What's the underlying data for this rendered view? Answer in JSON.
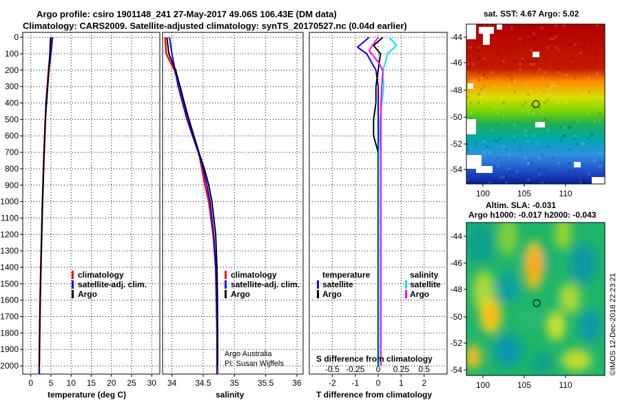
{
  "titles": {
    "line1": "Argo profile: csiro 1901148_241 27-May-2017 49.06S 106.43E (DM data)",
    "line2": "Climatology: CARS2009. Satellite-adjusted climatology: synTS_20170527.nc (0.04d earlier)"
  },
  "map_top": {
    "title": "sat. SST: 4.67 Argo: 5.02",
    "lat_ticks": [
      "-44",
      "-46",
      "-48",
      "-50",
      "-52",
      "-54"
    ],
    "lon_ticks": [
      "100",
      "105",
      "110"
    ]
  },
  "map_bottom": {
    "title1": "Altim. SLA: -0.031",
    "title2": "Argo h1000: -0.017 h2000: -0.043",
    "lat_ticks": [
      "-44",
      "-46",
      "-48",
      "-50",
      "-52",
      "-54"
    ],
    "lon_ticks": [
      "100",
      "105",
      "110"
    ]
  },
  "depth_ticks": [
    "0",
    "100",
    "200",
    "300",
    "400",
    "500",
    "600",
    "700",
    "800",
    "900",
    "1000",
    "1100",
    "1200",
    "1300",
    "1400",
    "1500",
    "1600",
    "1700",
    "1800",
    "1900",
    "2000"
  ],
  "legend1": {
    "climatology": "climatology",
    "satellite": "satellite-adj. clim.",
    "argo": "Argo"
  },
  "legend2": {
    "climatology": "climatology",
    "satellite": "satellite-adj. clim.",
    "argo": "Argo"
  },
  "legend3": {
    "temperature": "temperature",
    "salinity": "salinity",
    "sat_t": "satellite",
    "argo_t": "Argo",
    "sat_s": "satellite",
    "argo_s": "Argo"
  },
  "credit": {
    "line1": "Argo Australia",
    "line2": "PI: Susan Wijffels"
  },
  "stamp": "©IMOS 12-Dec-2018 22:23:21",
  "colors": {
    "climatology": "#ff0000",
    "satellite": "#0000ff",
    "argo": "#000000",
    "sat_s": "#00e5ee",
    "argo_s": "#ff00ff"
  },
  "chart_data": [
    {
      "type": "line",
      "title": "",
      "xlabel": "temperature (deg C)",
      "ylabel": "",
      "xlim": [
        -2,
        32
      ],
      "ylim": [
        2050,
        -30
      ],
      "x_ticks": [
        0,
        5,
        10,
        15,
        20,
        25,
        30
      ],
      "x_tick_labels": [
        "0",
        "5",
        "10",
        "15",
        "20",
        "25",
        "30"
      ],
      "series": [
        {
          "name": "climatology",
          "depth": [
            0,
            100,
            200,
            400,
            700,
            1000,
            1300,
            1600,
            2000,
            2050
          ],
          "values": [
            5.0,
            4.8,
            4.4,
            3.8,
            3.3,
            2.9,
            2.6,
            2.3,
            2.1,
            2.1
          ]
        },
        {
          "name": "satellite-adj. clim.",
          "depth": [
            0,
            100,
            200,
            400,
            700,
            1000,
            1300,
            1600,
            2000,
            2050
          ],
          "values": [
            5.4,
            5.0,
            4.5,
            3.8,
            3.3,
            2.9,
            2.6,
            2.3,
            2.1,
            2.1
          ]
        },
        {
          "name": "Argo",
          "depth": [
            0,
            120,
            300,
            500,
            700,
            1000,
            1400,
            1800,
            2000
          ],
          "values": [
            4.9,
            4.7,
            4.2,
            3.6,
            3.3,
            2.9,
            2.5,
            2.2,
            2.1
          ]
        }
      ]
    },
    {
      "type": "line",
      "title": "",
      "xlabel": "salinity",
      "ylabel": "",
      "xlim": [
        33.85,
        36.1
      ],
      "ylim": [
        2050,
        -30
      ],
      "x_ticks": [
        34,
        34.5,
        35,
        35.5,
        36
      ],
      "x_tick_labels": [
        "34",
        "34.5",
        "35",
        "35.5",
        "36"
      ],
      "series": [
        {
          "name": "climatology",
          "depth": [
            0,
            100,
            200,
            300,
            400,
            500,
            600,
            700,
            800,
            900,
            1000,
            1200,
            1400,
            1600,
            1800,
            2000,
            2050
          ],
          "values": [
            33.89,
            33.91,
            34.04,
            34.13,
            34.19,
            34.27,
            34.35,
            34.43,
            34.48,
            34.53,
            34.59,
            34.66,
            34.7,
            34.72,
            34.73,
            34.73,
            34.73
          ]
        },
        {
          "name": "satellite-adj. clim.",
          "depth": [
            0,
            100,
            200,
            300,
            400,
            500,
            600,
            700,
            800,
            900,
            1000,
            1200,
            1400,
            1600,
            1800,
            2000,
            2050
          ],
          "values": [
            33.96,
            34.0,
            34.05,
            34.1,
            34.17,
            34.24,
            34.33,
            34.42,
            34.5,
            34.56,
            34.61,
            34.67,
            34.7,
            34.71,
            34.72,
            34.72,
            34.72
          ]
        },
        {
          "name": "Argo",
          "depth": [
            0,
            100,
            200,
            300,
            400,
            500,
            600,
            700,
            800,
            900,
            1000,
            1200,
            1400,
            1600,
            1800,
            2000
          ],
          "values": [
            33.92,
            33.95,
            34.06,
            34.13,
            34.2,
            34.27,
            34.35,
            34.43,
            34.52,
            34.59,
            34.64,
            34.7,
            34.72,
            34.73,
            34.73,
            34.73
          ]
        }
      ]
    },
    {
      "type": "line",
      "title": "",
      "xlabel": "T difference from climatology",
      "x2label": "S difference from climatology",
      "xlim": [
        -3,
        3
      ],
      "ylim": [
        2050,
        -30
      ],
      "x_ticks": [
        -2,
        -1,
        0,
        1,
        2
      ],
      "x_tick_labels": [
        "-2",
        "-1",
        "0",
        "1",
        "2"
      ],
      "x2_ticks": [
        -0.5,
        -0.25,
        0,
        0.25,
        0.5
      ],
      "x2_tick_labels": [
        "-0.5",
        "-0.25",
        "0",
        "0.25",
        "0.5"
      ],
      "series": [
        {
          "name": "temperature satellite",
          "depth": [
            0,
            60,
            100,
            150,
            200,
            300,
            500,
            700,
            900,
            1200,
            1500,
            2000
          ],
          "values": [
            -0.4,
            -0.9,
            -0.5,
            -0.3,
            -0.1,
            0.0,
            0.0,
            0.0,
            0.0,
            0.0,
            0.0,
            0.0
          ]
        },
        {
          "name": "temperature Argo",
          "depth": [
            0,
            50,
            100,
            200,
            300,
            400,
            500,
            600,
            650,
            700,
            900,
            1200,
            1500,
            2000
          ],
          "values": [
            0.2,
            -0.2,
            0.1,
            0.0,
            -0.1,
            -0.1,
            -0.2,
            -0.2,
            -0.1,
            0.0,
            0.0,
            0.0,
            0.0,
            0.0
          ]
        },
        {
          "name": "salinity satellite",
          "depth": [
            0,
            50,
            100,
            150,
            200,
            300,
            400,
            500,
            700,
            1000,
            1500,
            2000
          ],
          "values": [
            0.12,
            0.2,
            0.1,
            0.08,
            0.05,
            0.06,
            0.04,
            0.02,
            0.01,
            0.01,
            0.01,
            0.01
          ]
        },
        {
          "name": "salinity Argo",
          "depth": [
            0,
            80,
            150,
            200,
            300,
            400,
            600,
            800,
            1000,
            1500,
            2000
          ],
          "values": [
            0.0,
            -0.1,
            0.0,
            0.05,
            0.04,
            0.03,
            0.03,
            0.03,
            0.03,
            0.03,
            0.03
          ]
        }
      ]
    }
  ]
}
